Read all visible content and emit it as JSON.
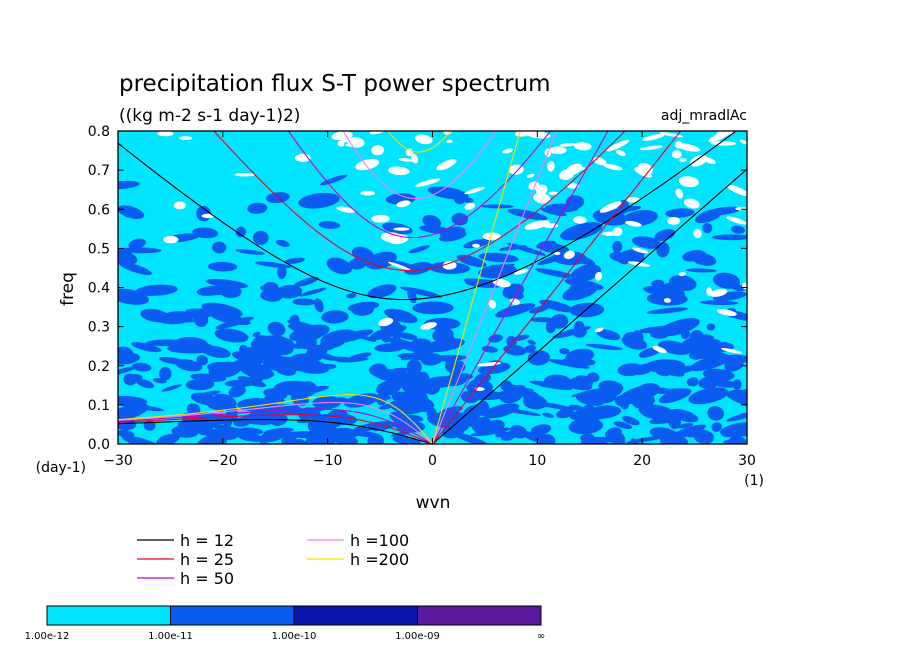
{
  "chart_data": {
    "type": "heatmap",
    "title": "precipitation flux S-T power spectrum",
    "subtitle": "((kg m-2 s-1 day-1)2)",
    "case_label": "adj_mradlAc",
    "xlabel": "wvn",
    "x_unit": "(1)",
    "ylabel": "freq",
    "y_unit": "(day-1)",
    "xlim": [
      -30,
      30
    ],
    "ylim": [
      0,
      0.8
    ],
    "x_ticks": [
      -30,
      -20,
      -10,
      0,
      10,
      20,
      30
    ],
    "y_ticks": [
      0.0,
      0.1,
      0.2,
      0.3,
      0.4,
      0.5,
      0.6,
      0.7,
      0.8
    ],
    "x_tick_labels": [
      "−30",
      "−20",
      "−10",
      "0",
      "10",
      "20",
      "30"
    ],
    "y_tick_labels": [
      "0.0",
      "0.1",
      "0.2",
      "0.3",
      "0.4",
      "0.5",
      "0.6",
      "0.7",
      "0.8"
    ],
    "colorbar": {
      "labels": [
        "1.00e-12",
        "1.00e-11",
        "1.00e-10",
        "1.00e-09",
        "∞"
      ],
      "colors": [
        "#00e5ff",
        "#0a5cf0",
        "#0a14a8",
        "#5a189c"
      ]
    },
    "dispersion_curves": [
      {
        "label": "h = 12",
        "h": 12,
        "color": "#000000"
      },
      {
        "label": "h = 25",
        "h": 25,
        "color": "#e8002c"
      },
      {
        "label": "h = 50",
        "h": 50,
        "color": "#c800c8"
      },
      {
        "label": "h =100",
        "h": 100,
        "color": "#ff78ff"
      },
      {
        "label": "h =200",
        "h": 200,
        "color": "#f0e000"
      }
    ]
  }
}
